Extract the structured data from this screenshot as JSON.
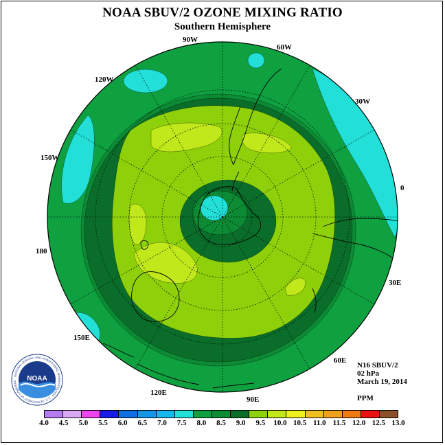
{
  "title": "NOAA SBUV/2 OZONE MIXING RATIO",
  "subtitle": "Southern Hemisphere",
  "longitude_labels": {
    "lon_90w": "90W",
    "lon_60w": "60W",
    "lon_120w": "120W",
    "lon_30w": "30W",
    "lon_150w": "150W",
    "lon_0": "0",
    "lon_180": "180",
    "lon_30e": "30E",
    "lon_150e": "150E",
    "lon_60e": "60E",
    "lon_120e": "120E",
    "lon_90e": "90E"
  },
  "info": {
    "instrument": "N16 SBUV/2",
    "level": "02 hPa",
    "date": "March 19, 2014",
    "units": "PPM"
  },
  "logo": {
    "text": "NOAA",
    "ring_text": "NATIONAL OCEANIC AND ATMOSPHERIC ADMINISTRATION · U.S. DEPARTMENT OF COMMERCE"
  },
  "colorbar": {
    "ticks": [
      "4.0",
      "4.5",
      "5.0",
      "5.5",
      "6.0",
      "6.5",
      "7.0",
      "7.5",
      "8.0",
      "8.5",
      "9.0",
      "9.5",
      "10.0",
      "10.5",
      "11.0",
      "11.5",
      "12.0",
      "12.5",
      "13.0"
    ],
    "colors": [
      "#b57bf0",
      "#d9a8f5",
      "#ee44ee",
      "#1a1ae6",
      "#0d6fe0",
      "#1296e8",
      "#17b7ee",
      "#22e0d8",
      "#0fa040",
      "#0c8a34",
      "#0a6e2a",
      "#8ed10a",
      "#c0e81a",
      "#f0f020",
      "#f0c020",
      "#f0a020",
      "#f07a10",
      "#e81010",
      "#8a5028"
    ]
  },
  "map_colors": {
    "c75": "#22e0d8",
    "c80": "#0fa040",
    "c85": "#0c8a34",
    "c90": "#0a6e2a",
    "c95": "#8ed10a",
    "c100": "#c0e81a"
  }
}
